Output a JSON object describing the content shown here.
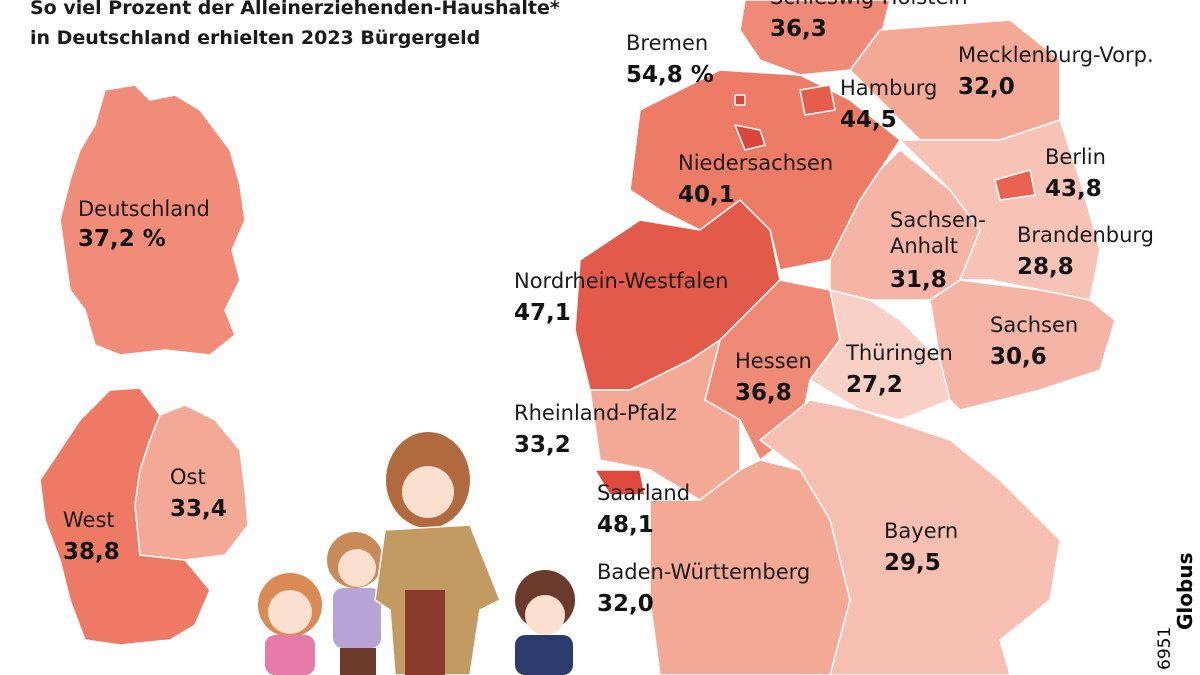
{
  "header": {
    "title_lines": [
      "So viel Prozent der Alleinerziehenden-Haushalte*",
      "in Deutschland erhielten 2023 Bürgergeld"
    ]
  },
  "national": {
    "germany": {
      "name": "Deutschland",
      "value": "37,2 %"
    },
    "west": {
      "name": "West",
      "value": "38,8"
    },
    "east": {
      "name": "Ost",
      "value": "33,4"
    }
  },
  "states": [
    {
      "name": "Schleswig-Holstein",
      "value": "36,3"
    },
    {
      "name": "Mecklenburg-Vorp.",
      "value": "32,0"
    },
    {
      "name": "Bremen",
      "value": "54,8 %"
    },
    {
      "name": "Hamburg",
      "value": "44,5"
    },
    {
      "name": "Niedersachsen",
      "value": "40,1"
    },
    {
      "name": "Berlin",
      "value": "43,8"
    },
    {
      "name": "Sachsen-",
      "value": "31,8",
      "name2": "Anhalt"
    },
    {
      "name": "Brandenburg",
      "value": "28,8"
    },
    {
      "name": "Nordrhein-Westfalen",
      "value": "47,1"
    },
    {
      "name": "Sachsen",
      "value": "30,6"
    },
    {
      "name": "Hessen",
      "value": "36,8"
    },
    {
      "name": "Thüringen",
      "value": "27,2"
    },
    {
      "name": "Rheinland-Pfalz",
      "value": "33,2"
    },
    {
      "name": "Saarland",
      "value": "48,1"
    },
    {
      "name": "Bayern",
      "value": "29,5"
    },
    {
      "name": "Baden-Württemberg",
      "value": "32,0"
    }
  ],
  "credit": {
    "number": "6951",
    "source": "Globus"
  }
}
